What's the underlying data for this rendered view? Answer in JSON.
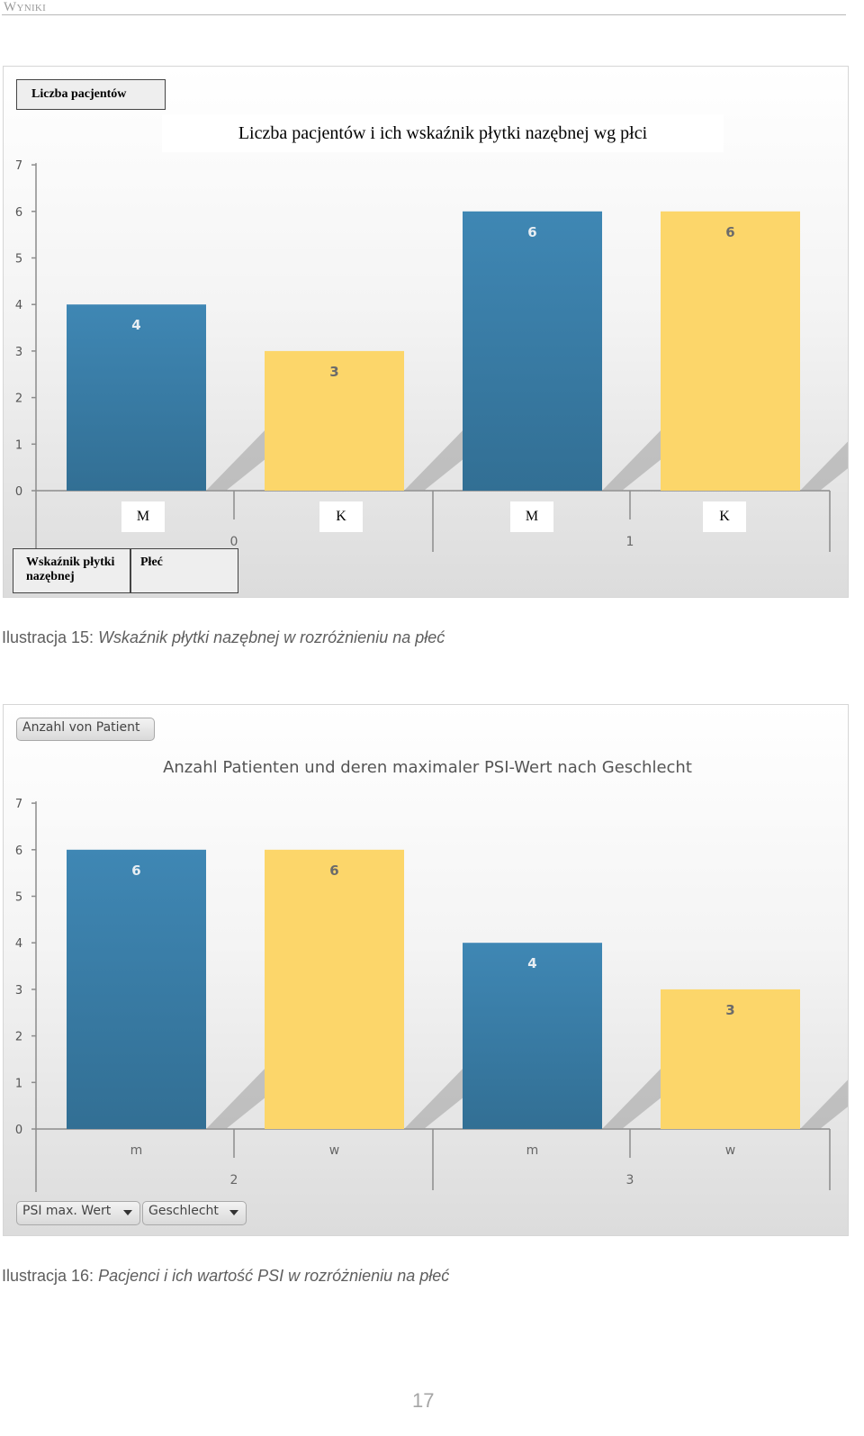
{
  "header": {
    "text": "Wyniki"
  },
  "chart1": {
    "field_button": "Liczba pacjentów",
    "axis_fields": [
      "Wskaźnik płytki nazębnej",
      "Płeć"
    ],
    "colors": {
      "m": "#3f87b4",
      "k": "#fcd66a"
    }
  },
  "chart2": {
    "field_button": "Anzahl von Patient",
    "axis_fields": [
      "PSI max. Wert",
      "Geschlecht"
    ],
    "colors": {
      "m": "#3f87b4",
      "w": "#fcd66a"
    }
  },
  "chart_data": [
    {
      "type": "bar",
      "title": "Liczba pacjentów i ich wskaźnik płytki nazębnej wg płci",
      "groups": [
        "0",
        "1"
      ],
      "categories": [
        "M",
        "K",
        "M",
        "K"
      ],
      "values": [
        4,
        3,
        6,
        6
      ],
      "ylim": [
        0,
        7
      ],
      "yticks": [
        "0",
        "1",
        "2",
        "3",
        "4",
        "5",
        "6",
        "7"
      ],
      "grid": false
    },
    {
      "type": "bar",
      "title": "Anzahl Patienten und deren maximaler PSI-Wert nach Geschlecht",
      "groups": [
        "2",
        "3"
      ],
      "categories": [
        "m",
        "w",
        "m",
        "w"
      ],
      "values": [
        6,
        6,
        4,
        3
      ],
      "ylim": [
        0,
        7
      ],
      "yticks": [
        "0",
        "1",
        "2",
        "3",
        "4",
        "5",
        "6",
        "7"
      ],
      "grid": false
    }
  ],
  "captions": [
    {
      "lead": "Ilustracja 15:",
      "body": " Wskaźnik płytki nazębnej w rozróżnieniu na płeć"
    },
    {
      "lead": "Ilustracja 16:",
      "body": " Pacjenci i ich wartość PSI w rozróżnieniu na płeć"
    }
  ],
  "page_number": "17"
}
